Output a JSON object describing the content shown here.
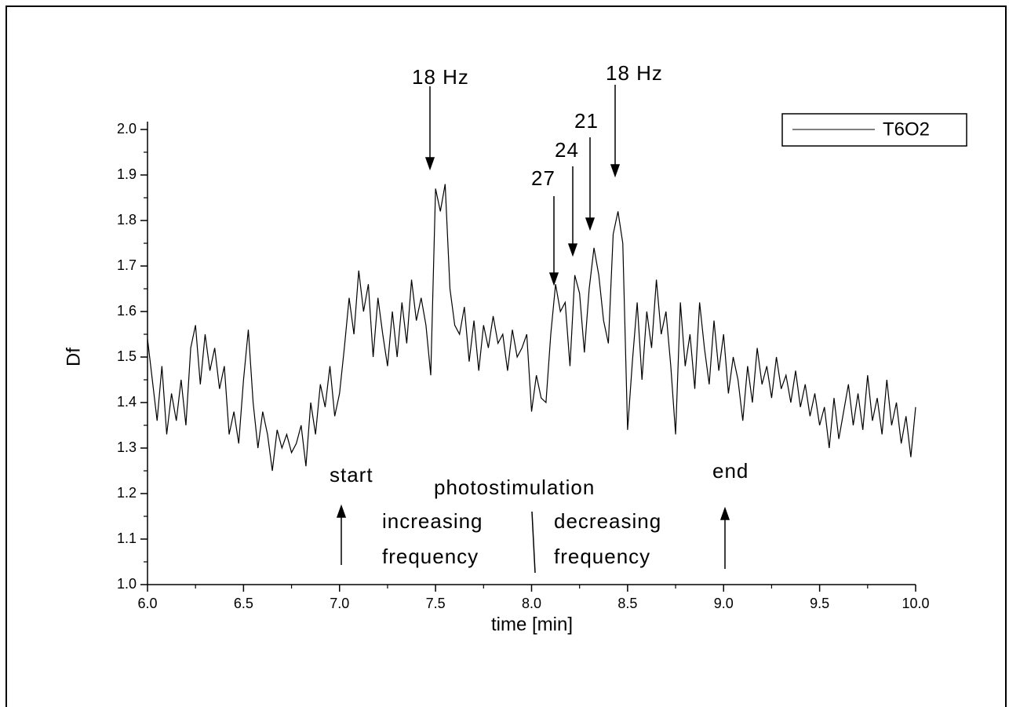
{
  "chart_data": {
    "type": "line",
    "x_label": "time [min]",
    "y_label": "Df",
    "x": [
      6,
      6.025,
      6.05,
      6.075,
      6.1,
      6.125,
      6.15,
      6.175,
      6.2,
      6.225,
      6.25,
      6.275,
      6.3,
      6.325,
      6.35,
      6.375,
      6.4,
      6.425,
      6.45,
      6.475,
      6.5,
      6.525,
      6.55,
      6.575,
      6.6,
      6.625,
      6.65,
      6.675,
      6.7,
      6.725,
      6.75,
      6.775,
      6.8,
      6.825,
      6.85,
      6.875,
      6.9,
      6.925,
      6.95,
      6.975,
      7,
      7.025,
      7.05,
      7.075,
      7.1,
      7.125,
      7.15,
      7.175,
      7.2,
      7.225,
      7.25,
      7.275,
      7.3,
      7.325,
      7.35,
      7.375,
      7.4,
      7.425,
      7.45,
      7.475,
      7.5,
      7.525,
      7.55,
      7.575,
      7.6,
      7.625,
      7.65,
      7.675,
      7.7,
      7.725,
      7.75,
      7.775,
      7.8,
      7.825,
      7.85,
      7.875,
      7.9,
      7.925,
      7.95,
      7.975,
      8,
      8.025,
      8.05,
      8.075,
      8.1,
      8.125,
      8.15,
      8.175,
      8.2,
      8.225,
      8.25,
      8.275,
      8.3,
      8.325,
      8.35,
      8.375,
      8.4,
      8.425,
      8.45,
      8.475,
      8.5,
      8.525,
      8.55,
      8.575,
      8.6,
      8.625,
      8.65,
      8.675,
      8.7,
      8.725,
      8.75,
      8.775,
      8.8,
      8.825,
      8.85,
      8.875,
      8.9,
      8.925,
      8.95,
      8.975,
      9,
      9.025,
      9.05,
      9.075,
      9.1,
      9.125,
      9.15,
      9.175,
      9.2,
      9.225,
      9.25,
      9.275,
      9.3,
      9.325,
      9.35,
      9.375,
      9.4,
      9.425,
      9.45,
      9.475,
      9.5,
      9.525,
      9.55,
      9.575,
      9.6,
      9.625,
      9.65,
      9.675,
      9.7,
      9.725,
      9.75,
      9.775,
      9.8,
      9.825,
      9.85,
      9.875,
      9.9,
      9.925,
      9.95,
      9.975,
      10
    ],
    "series": [
      {
        "name": "T6O2",
        "color": "#000000",
        "values": [
          1.54,
          1.45,
          1.36,
          1.48,
          1.33,
          1.42,
          1.36,
          1.45,
          1.35,
          1.52,
          1.57,
          1.44,
          1.55,
          1.47,
          1.52,
          1.43,
          1.48,
          1.33,
          1.38,
          1.31,
          1.45,
          1.56,
          1.4,
          1.3,
          1.38,
          1.33,
          1.25,
          1.34,
          1.3,
          1.33,
          1.29,
          1.31,
          1.35,
          1.26,
          1.4,
          1.33,
          1.44,
          1.39,
          1.48,
          1.37,
          1.42,
          1.52,
          1.63,
          1.55,
          1.69,
          1.6,
          1.66,
          1.5,
          1.63,
          1.55,
          1.48,
          1.6,
          1.5,
          1.62,
          1.53,
          1.67,
          1.58,
          1.63,
          1.57,
          1.46,
          1.87,
          1.82,
          1.88,
          1.65,
          1.57,
          1.55,
          1.61,
          1.49,
          1.58,
          1.47,
          1.57,
          1.52,
          1.59,
          1.53,
          1.55,
          1.47,
          1.56,
          1.5,
          1.52,
          1.55,
          1.38,
          1.46,
          1.41,
          1.4,
          1.55,
          1.66,
          1.6,
          1.62,
          1.48,
          1.68,
          1.64,
          1.51,
          1.65,
          1.74,
          1.68,
          1.58,
          1.53,
          1.77,
          1.82,
          1.75,
          1.34,
          1.49,
          1.62,
          1.45,
          1.6,
          1.52,
          1.67,
          1.55,
          1.6,
          1.48,
          1.33,
          1.62,
          1.48,
          1.55,
          1.43,
          1.62,
          1.52,
          1.44,
          1.58,
          1.47,
          1.55,
          1.42,
          1.5,
          1.45,
          1.36,
          1.48,
          1.4,
          1.52,
          1.44,
          1.48,
          1.41,
          1.5,
          1.43,
          1.46,
          1.4,
          1.47,
          1.39,
          1.44,
          1.37,
          1.42,
          1.35,
          1.39,
          1.3,
          1.41,
          1.32,
          1.38,
          1.44,
          1.35,
          1.42,
          1.34,
          1.46,
          1.36,
          1.41,
          1.33,
          1.45,
          1.35,
          1.4,
          1.31,
          1.37,
          1.28,
          1.39
        ]
      }
    ],
    "xlim": [
      6,
      10
    ],
    "xticks": [
      {
        "value": 6,
        "label": "6.0"
      },
      6.5,
      {
        "value": 7,
        "label": "7.0"
      },
      7.5,
      {
        "value": 8,
        "label": "8.0"
      },
      8.5,
      {
        "value": 9,
        "label": "9.0"
      },
      9.5,
      {
        "value": 10,
        "label": "10.0"
      }
    ],
    "ylim": [
      1,
      2
    ],
    "yticks": [
      {
        "value": 1,
        "label": "1.0"
      },
      1.1,
      1.2,
      1.3,
      1.4,
      1.5,
      1.6,
      1.7,
      1.8,
      1.9,
      {
        "value": 2,
        "label": "2.0"
      }
    ],
    "grid": false,
    "legend": "upper right",
    "annotations": [
      "18 Hz",
      "27",
      "24",
      "21",
      "18 Hz",
      "start",
      "photostimulation",
      "increasing frequency",
      "decreasing frequency",
      "end"
    ]
  }
}
